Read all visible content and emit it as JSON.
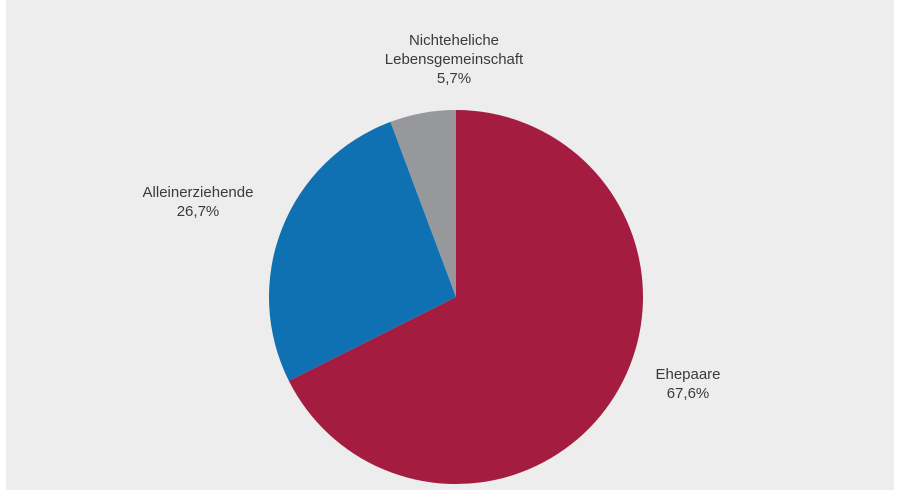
{
  "chart_data": {
    "type": "pie",
    "title": "",
    "slices": [
      {
        "label": "Ehepaare",
        "value": 67.6,
        "value_label": "67,6%",
        "color": "#a51c41"
      },
      {
        "label": "Alleinerziehende",
        "value": 26.7,
        "value_label": "26,7%",
        "color": "#0f71b2"
      },
      {
        "label": "Nichteheliche Lebensgemeinschaft",
        "value": 5.7,
        "value_label": "5,7%",
        "color": "#97989c"
      }
    ],
    "label_lines": {
      "ehepaare": [
        "Ehepaare"
      ],
      "alleinerziehende": [
        "Alleinerziehende"
      ],
      "nichteheliche": [
        "Nichteheliche",
        "Lebensgemeinschaft"
      ]
    },
    "start_angle": "12 o'clock",
    "direction": "clockwise",
    "background": "#ededed"
  }
}
